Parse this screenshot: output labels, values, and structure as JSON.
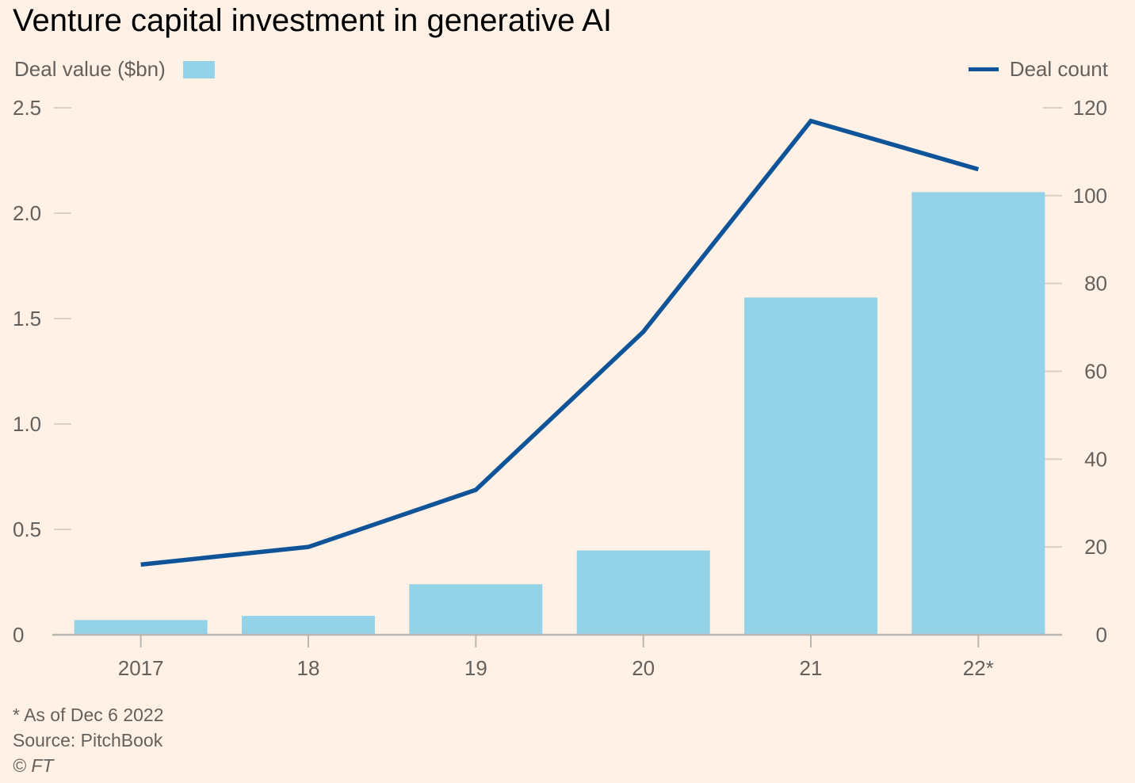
{
  "title": "Venture capital investment in generative AI",
  "legend": {
    "bars_label": "Deal value ($bn)",
    "line_label": "Deal count"
  },
  "footer": {
    "note": "* As of Dec 6 2022",
    "source": "Source: PitchBook",
    "copyright": "© FT"
  },
  "colors": {
    "bar": "#94d2e8",
    "line": "#0f5499",
    "axis": "#bcb6b0",
    "tick": "#d9d0c8",
    "background": "#fff1e5"
  },
  "chart_data": {
    "type": "bar",
    "categories": [
      "2017",
      "18",
      "19",
      "20",
      "21",
      "22*"
    ],
    "series": [
      {
        "name": "Deal value ($bn)",
        "type": "bar",
        "axis": "left",
        "values": [
          0.07,
          0.09,
          0.24,
          0.4,
          1.6,
          2.1
        ]
      },
      {
        "name": "Deal count",
        "type": "line",
        "axis": "right",
        "values": [
          16,
          20,
          33,
          69,
          117,
          106
        ]
      }
    ],
    "y_left": {
      "ylim": [
        0,
        2.5
      ],
      "ticks": [
        0,
        0.5,
        1.0,
        1.5,
        2.0,
        2.5
      ],
      "tick_labels": [
        "0",
        "0.5",
        "1.0",
        "1.5",
        "2.0",
        "2.5"
      ]
    },
    "y_right": {
      "ylim": [
        0,
        120
      ],
      "ticks": [
        0,
        20,
        40,
        60,
        80,
        100,
        120
      ],
      "tick_labels": [
        "0",
        "20",
        "40",
        "60",
        "80",
        "100",
        "120"
      ]
    },
    "grid": false,
    "legend_placement": "top"
  }
}
